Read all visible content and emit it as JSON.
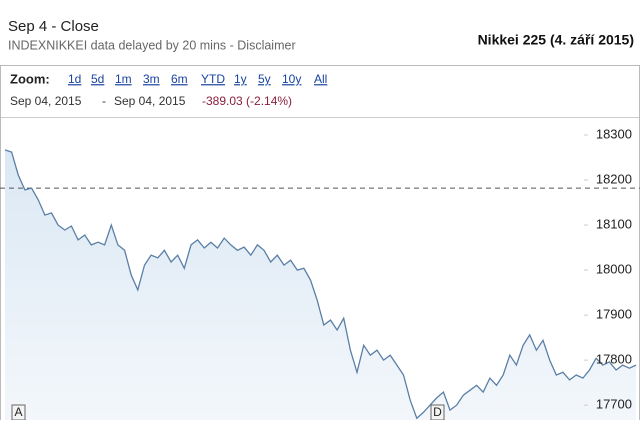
{
  "chart_data": {
    "type": "line",
    "title": "Nikkei 225 (4. září 2015)",
    "subtitle": "Sep 4 - Close",
    "note": "INDEXNIKKEI data delayed by 20 mins - Disclaimer",
    "zoom_label": "Zoom:",
    "zoom_options": [
      "1d",
      "5d",
      "1m",
      "3m",
      "6m",
      "YTD",
      "1y",
      "5y",
      "10y",
      "All"
    ],
    "range_start": "Sep 04, 2015",
    "range_separator": "-",
    "range_end": "Sep 04, 2015",
    "change": "-389.03 (-2.14%)",
    "markers": [
      "A",
      "D"
    ],
    "color": "#5a7fa6",
    "reference_line": 18182,
    "values": [
      18267,
      18262,
      18211,
      18178,
      18182,
      18156,
      18122,
      18127,
      18100,
      18089,
      18098,
      18067,
      18078,
      18056,
      18062,
      18056,
      18100,
      18056,
      18044,
      17989,
      17956,
      18011,
      18033,
      18027,
      18044,
      18018,
      18033,
      18004,
      18056,
      18067,
      18049,
      18062,
      18049,
      18071,
      18056,
      18044,
      18051,
      18033,
      18056,
      18044,
      18018,
      18033,
      18011,
      18022,
      18000,
      18004,
      17978,
      17933,
      17878,
      17889,
      17867,
      17893,
      17822,
      17773,
      17833,
      17811,
      17822,
      17800,
      17811,
      17789,
      17767,
      17711,
      17671,
      17684,
      17700,
      17716,
      17729,
      17689,
      17700,
      17722,
      17733,
      17744,
      17729,
      17760,
      17744,
      17767,
      17811,
      17789,
      17833,
      17856,
      17822,
      17844,
      17800,
      17767,
      17773,
      17756,
      17767,
      17760,
      17778,
      17804,
      17789,
      17796,
      17778,
      17789,
      17782,
      17789
    ],
    "ylim": [
      17667,
      18340
    ],
    "yticks": [
      17700,
      17800,
      17900,
      18000,
      18100,
      18200,
      18300
    ]
  }
}
